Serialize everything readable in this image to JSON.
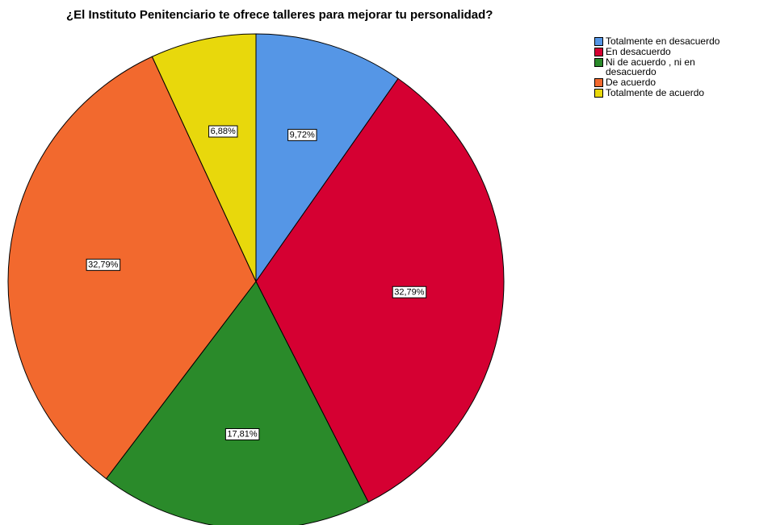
{
  "chart_data": {
    "type": "pie",
    "title": "¿El Instituto Penitenciario te ofrece talleres para mejorar tu personalidad?",
    "categories": [
      "Totalmente en desacuerdo",
      "En desacuerdo",
      "Ni de acuerdo , ni en desacuerdo",
      "De acuerdo",
      "Totalmente de acuerdo"
    ],
    "values": [
      9.72,
      32.79,
      17.81,
      32.79,
      6.88
    ],
    "value_labels": [
      "9,72%",
      "32,79%",
      "17,81%",
      "32,79%",
      "6,88%"
    ],
    "colors": [
      "#5596e6",
      "#d50032",
      "#2a8a2a",
      "#f2692e",
      "#e8d80c"
    ],
    "legend": "top-right"
  }
}
